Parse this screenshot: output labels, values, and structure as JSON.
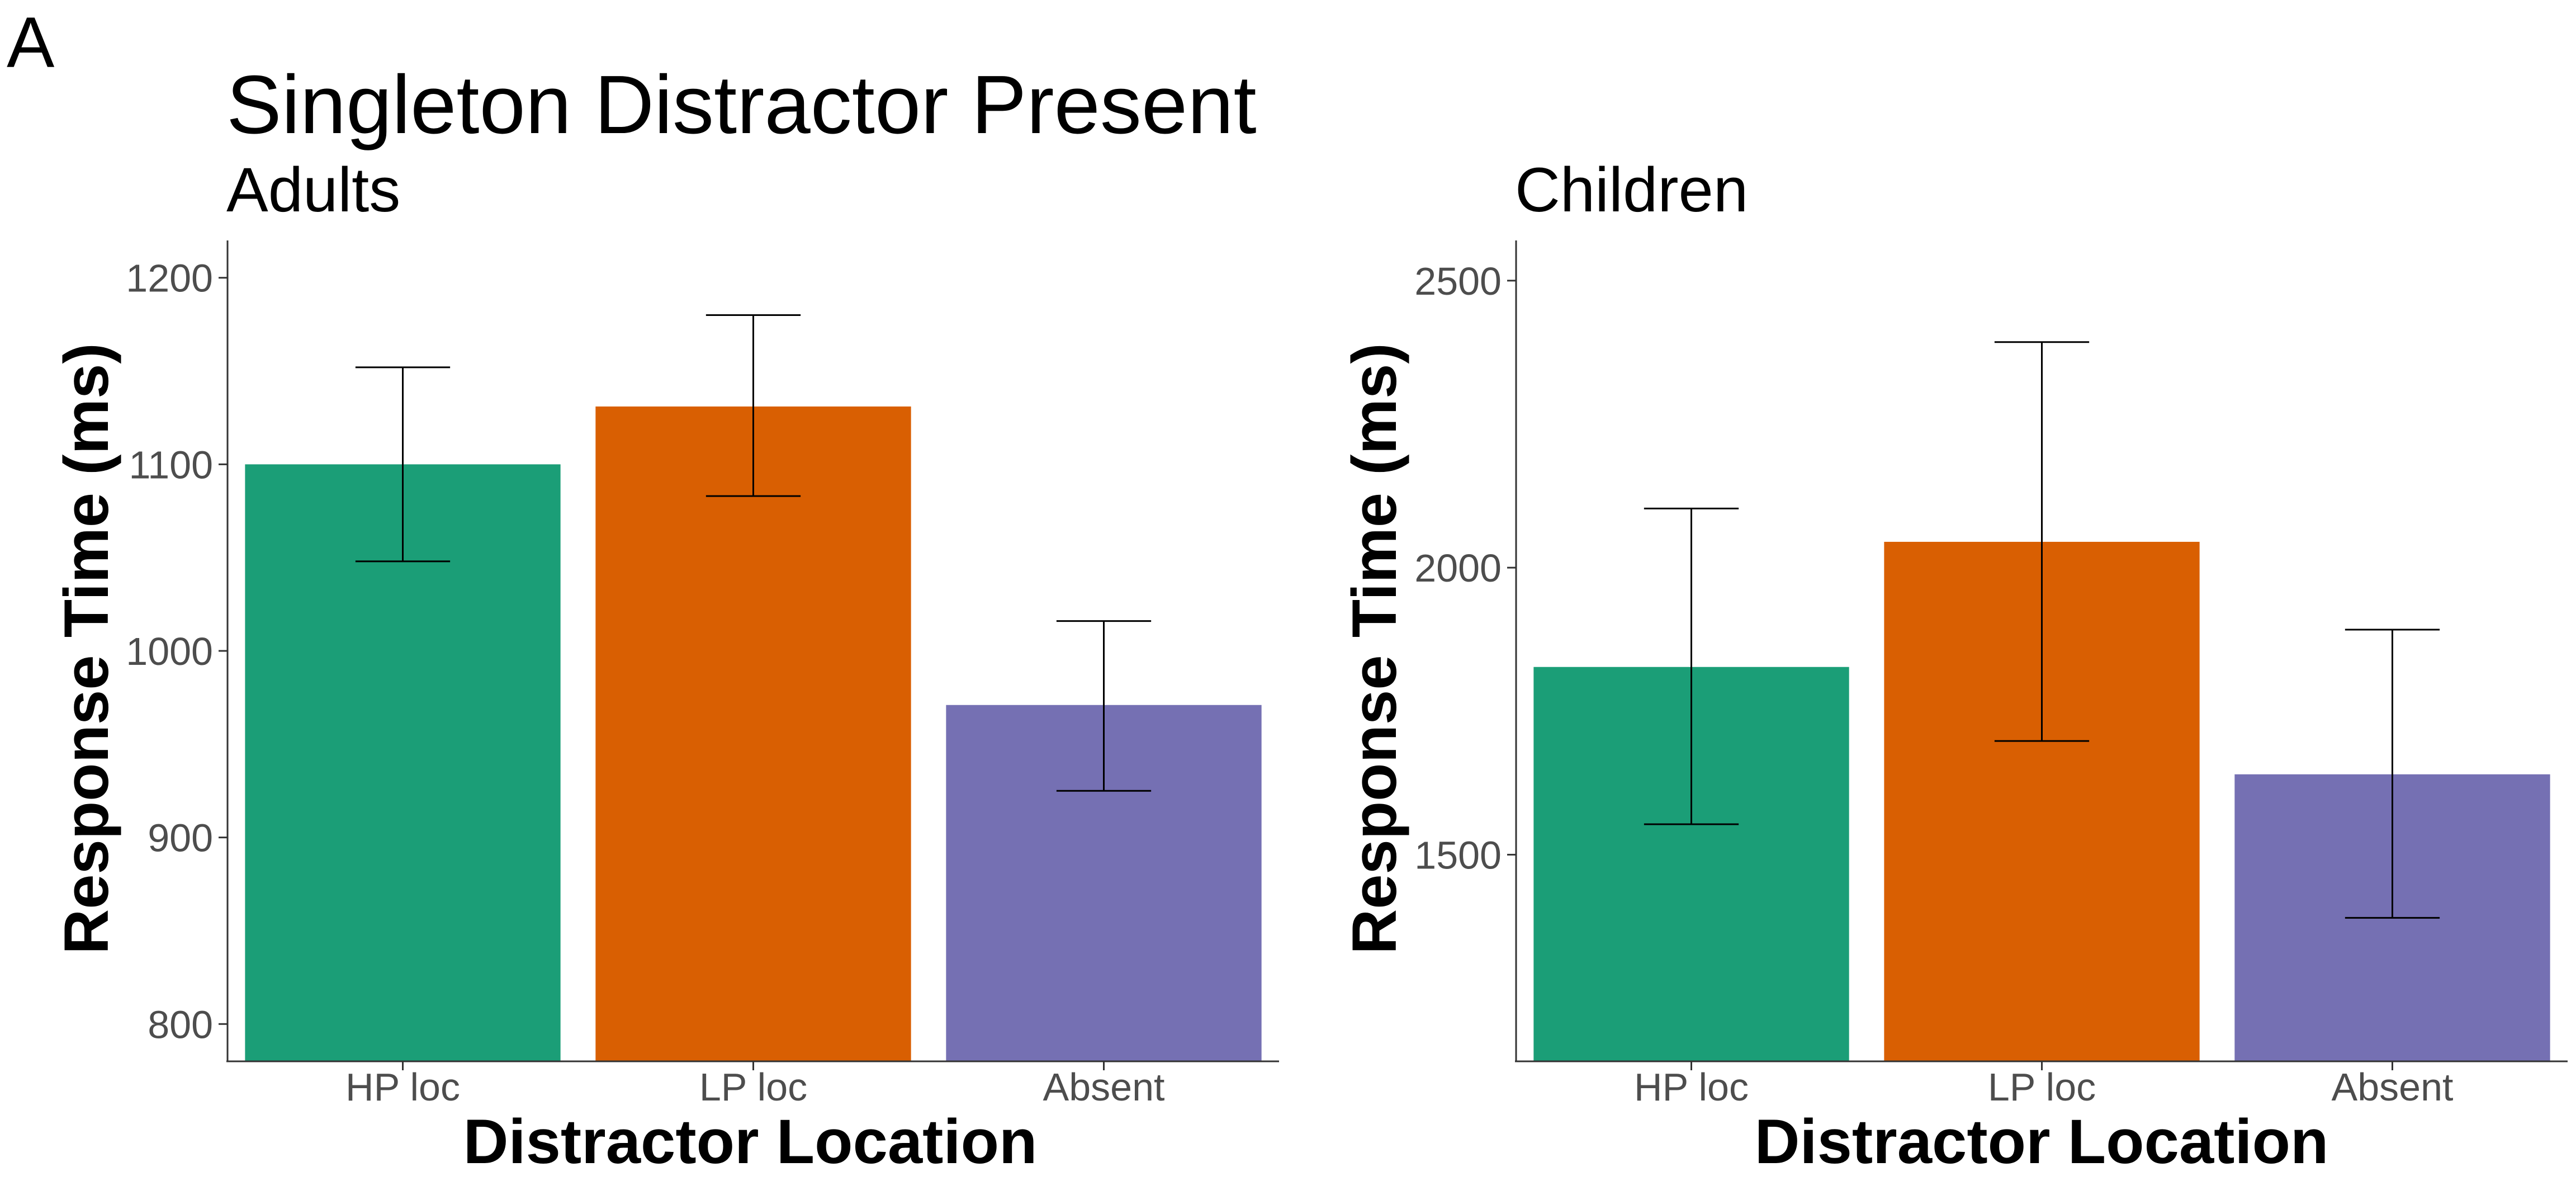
{
  "panel_label": "A",
  "figure_title": "Singleton Distractor Present",
  "chart_data": [
    {
      "type": "bar",
      "id": "adults",
      "subtitle": "Adults",
      "xlabel": "Distractor Location",
      "ylabel": "Response Time (ms)",
      "categories": [
        "HP loc",
        "LP loc",
        "Absent"
      ],
      "values": [
        1100,
        1131,
        971
      ],
      "error_low": [
        1048,
        1083,
        925
      ],
      "error_high": [
        1152,
        1180,
        1016
      ],
      "ylim": [
        780,
        1220
      ],
      "yticks": [
        800,
        900,
        1000,
        1100,
        1200
      ],
      "colors": [
        "#1b9e77",
        "#d95f02",
        "#7570b3"
      ]
    },
    {
      "type": "bar",
      "id": "children",
      "subtitle": "Children",
      "xlabel": "Distractor Location",
      "ylabel": "Response Time (ms)",
      "categories": [
        "HP loc",
        "LP loc",
        "Absent"
      ],
      "values": [
        1827,
        2045,
        1640
      ],
      "error_low": [
        1553,
        1698,
        1390
      ],
      "error_high": [
        2103,
        2393,
        1892
      ],
      "ylim": [
        1140,
        2570
      ],
      "yticks": [
        1500,
        2000,
        2500
      ],
      "colors": [
        "#1b9e77",
        "#d95f02",
        "#7570b3"
      ]
    }
  ]
}
